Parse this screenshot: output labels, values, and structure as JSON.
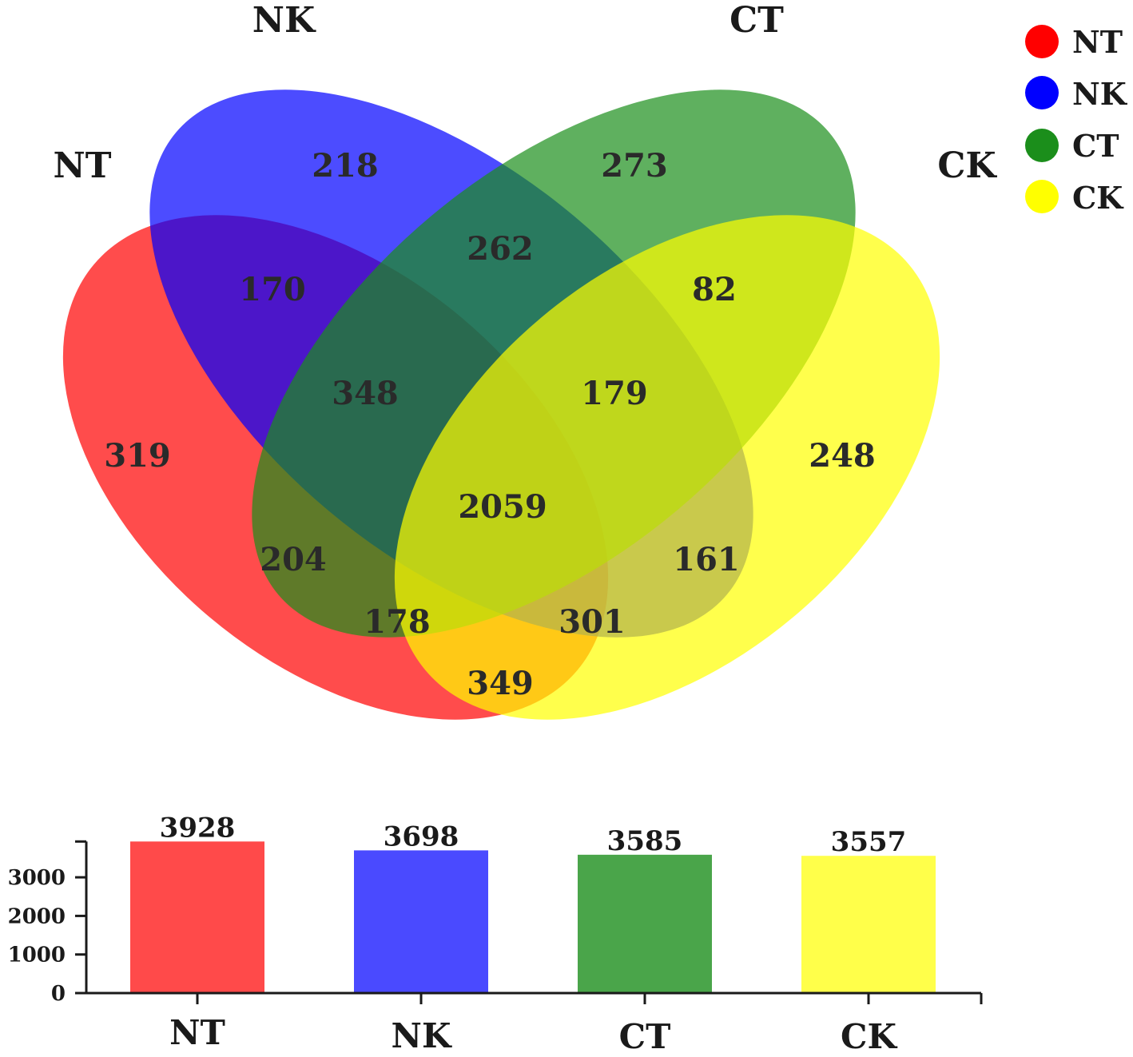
{
  "chart_data": [
    {
      "type": "venn",
      "sets": [
        {
          "key": "NT",
          "name": "NT",
          "color": "#ff0000"
        },
        {
          "key": "NK",
          "name": "NK",
          "color": "#0000ff"
        },
        {
          "key": "CT",
          "name": "CT",
          "color": "#1b8e1b"
        },
        {
          "key": "CK",
          "name": "CK",
          "color": "#ffff00"
        }
      ],
      "regions": [
        {
          "id": "nt-only",
          "sets": [
            "NT"
          ],
          "value": "319"
        },
        {
          "id": "nk-only",
          "sets": [
            "NK"
          ],
          "value": "218"
        },
        {
          "id": "ct-only",
          "sets": [
            "CT"
          ],
          "value": "273"
        },
        {
          "id": "ck-only",
          "sets": [
            "CK"
          ],
          "value": "248"
        },
        {
          "id": "nt-nk",
          "sets": [
            "NT",
            "NK"
          ],
          "value": "170"
        },
        {
          "id": "nk-ct",
          "sets": [
            "NK",
            "CT"
          ],
          "value": "262"
        },
        {
          "id": "ct-ck",
          "sets": [
            "CT",
            "CK"
          ],
          "value": "82"
        },
        {
          "id": "nt-ck",
          "sets": [
            "NT",
            "CK"
          ],
          "value": "349"
        },
        {
          "id": "nt-ct",
          "sets": [
            "NT",
            "CT"
          ],
          "value": "204"
        },
        {
          "id": "nk-ck",
          "sets": [
            "NK",
            "CK"
          ],
          "value": "161"
        },
        {
          "id": "nt-nk-ct",
          "sets": [
            "NT",
            "NK",
            "CT"
          ],
          "value": "348"
        },
        {
          "id": "nk-ct-ck",
          "sets": [
            "NK",
            "CT",
            "CK"
          ],
          "value": "179"
        },
        {
          "id": "nt-ct-ck",
          "sets": [
            "NT",
            "CT",
            "CK"
          ],
          "value": "178"
        },
        {
          "id": "nt-nk-ck",
          "sets": [
            "NT",
            "NK",
            "CK"
          ],
          "value": "301"
        },
        {
          "id": "all",
          "sets": [
            "NT",
            "NK",
            "CT",
            "CK"
          ],
          "value": "2059"
        }
      ],
      "legend": {
        "position": "top-right",
        "entries": [
          {
            "label": "NT",
            "color": "#ff0000"
          },
          {
            "label": "NK",
            "color": "#0000ff"
          },
          {
            "label": "CT",
            "color": "#1b8e1b"
          },
          {
            "label": "CK",
            "color": "#ffff00"
          }
        ]
      }
    },
    {
      "type": "bar",
      "categories": [
        "NT",
        "NK",
        "CT",
        "CK"
      ],
      "values": [
        3928,
        3698,
        3585,
        3557
      ],
      "value_labels": [
        "3928",
        "3698",
        "3585",
        "3557"
      ],
      "colors": [
        "#ff4a4a",
        "#4a4aff",
        "#4aa54a",
        "#ffff4a"
      ],
      "ylim": [
        0,
        3928
      ],
      "yticks": [
        0,
        1000,
        2000,
        3000
      ],
      "ytick_labels": [
        "0",
        "1000",
        "2000",
        "3000"
      ],
      "grid": false,
      "title": "",
      "xlabel": "",
      "ylabel": ""
    }
  ]
}
